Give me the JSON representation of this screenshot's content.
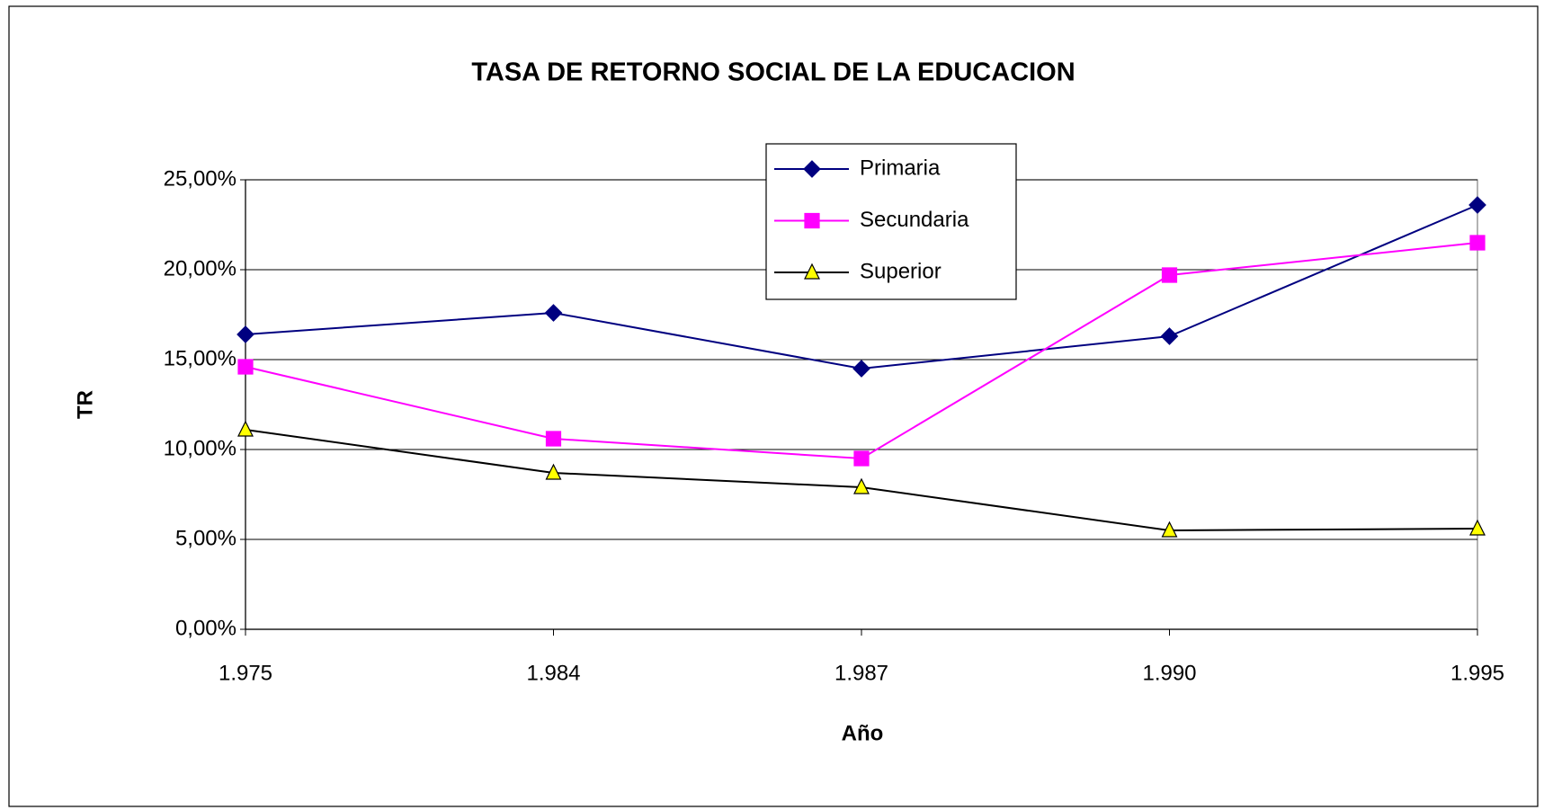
{
  "chart_data": {
    "type": "line",
    "title": "TASA DE RETORNO SOCIAL DE LA EDUCACION",
    "x_label": "Año",
    "y_label": "TR",
    "categories": [
      "1.975",
      "1.984",
      "1.987",
      "1.990",
      "1.995"
    ],
    "series": [
      {
        "name": "Primaria",
        "color": "#000080",
        "marker": "diamond",
        "marker_color": "#000080",
        "values": [
          16.4,
          17.6,
          14.5,
          16.3,
          23.6
        ]
      },
      {
        "name": "Secundaria",
        "color": "#FF00FF",
        "marker": "square",
        "marker_color": "#FF00FF",
        "values": [
          14.6,
          10.6,
          9.5,
          19.7,
          21.5
        ]
      },
      {
        "name": "Superior",
        "color": "#000000",
        "marker": "triangle",
        "marker_color": "#FFFF00",
        "values": [
          11.1,
          8.7,
          7.9,
          5.5,
          5.6
        ]
      }
    ],
    "ylim": [
      0,
      25
    ],
    "yticks": [
      {
        "value": 0,
        "label": "0,00%"
      },
      {
        "value": 5,
        "label": "5,00%"
      },
      {
        "value": 10,
        "label": "10,00%"
      },
      {
        "value": 15,
        "label": "15,00%"
      },
      {
        "value": 20,
        "label": "20,00%"
      },
      {
        "value": 25,
        "label": "25,00%"
      }
    ],
    "grid": true,
    "legend": "top"
  }
}
